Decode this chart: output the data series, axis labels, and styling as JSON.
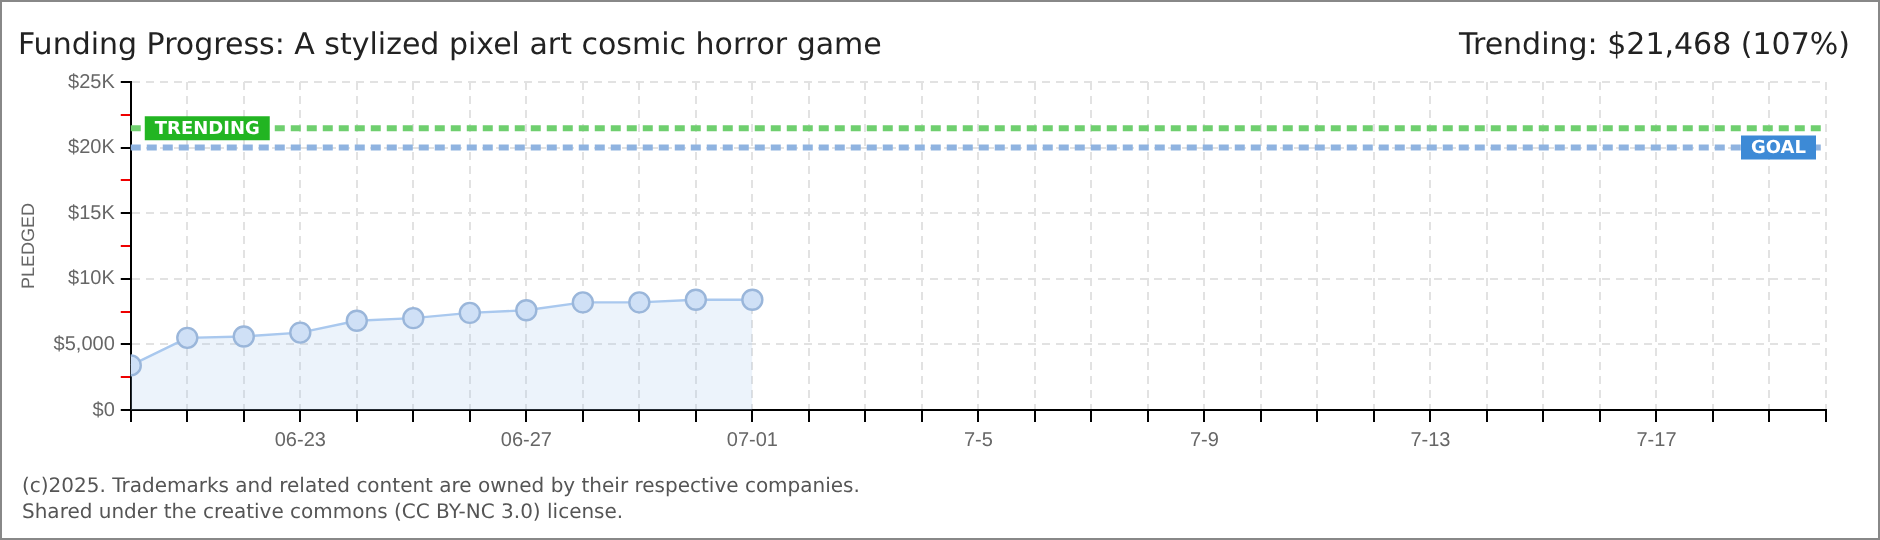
{
  "chart_data": {
    "type": "area",
    "title": "Funding Progress: A stylized pixel art cosmic horror game",
    "subtitle": "Trending: $21,468 (107%)",
    "ylabel": "PLEDGED",
    "x": [
      "--06-20",
      "--06-21",
      "--06-22",
      "--06-23",
      "--06-24",
      "--06-25",
      "--06-26",
      "--06-27",
      "--06-28",
      "--06-29",
      "--06-30",
      "--07-01"
    ],
    "series": [
      {
        "color": "#a9c8ee",
        "values": [
          3400,
          5500,
          5600,
          5900,
          6800,
          7000,
          7400,
          7600,
          8200,
          8200,
          8400,
          8400
        ]
      }
    ],
    "xlim": [
      "--06-20",
      "--07-20"
    ],
    "xticks": [
      {
        "value": "--06-20",
        "label": null
      },
      {
        "value": "--06-21",
        "label": null
      },
      {
        "value": "--06-22",
        "label": null
      },
      {
        "value": "--06-23",
        "label": "06-23"
      },
      {
        "value": "--06-24",
        "label": null
      },
      {
        "value": "--06-25",
        "label": null
      },
      {
        "value": "--06-26",
        "label": null
      },
      {
        "value": "--06-27",
        "label": "06-27"
      },
      {
        "value": "--06-28",
        "label": null
      },
      {
        "value": "--06-29",
        "label": null
      },
      {
        "value": "--06-30",
        "label": null
      },
      {
        "value": "--07-01",
        "label": "07-01"
      },
      {
        "value": "--07-02",
        "label": null
      },
      {
        "value": "--07-03",
        "label": null
      },
      {
        "value": "--07-04",
        "label": null
      },
      {
        "value": "--07-05",
        "label": "7-5"
      },
      {
        "value": "--07-06",
        "label": null
      },
      {
        "value": "--07-07",
        "label": null
      },
      {
        "value": "--07-08",
        "label": null
      },
      {
        "value": "--07-09",
        "label": "7-9"
      },
      {
        "value": "--07-10",
        "label": null
      },
      {
        "value": "--07-11",
        "label": null
      },
      {
        "value": "--07-12",
        "label": null
      },
      {
        "value": "--07-13",
        "label": "7-13"
      },
      {
        "value": "--07-14",
        "label": null
      },
      {
        "value": "--07-15",
        "label": null
      },
      {
        "value": "--07-16",
        "label": null
      },
      {
        "value": "--07-17",
        "label": "7-17"
      },
      {
        "value": "--07-18",
        "label": null
      },
      {
        "value": "--07-19",
        "label": null
      },
      {
        "value": "--07-20",
        "label": null
      }
    ],
    "ylim": [
      0,
      25000
    ],
    "yticks": [
      {
        "value": 0,
        "label": "$0"
      },
      {
        "value": 2500,
        "label": null
      },
      {
        "value": 5000,
        "label": "$5,000"
      },
      {
        "value": 7500,
        "label": null
      },
      {
        "value": 10000,
        "label": "$10K"
      },
      {
        "value": 12500,
        "label": null
      },
      {
        "value": 15000,
        "label": "$15K"
      },
      {
        "value": 17500,
        "label": null
      },
      {
        "value": 20000,
        "label": "$20K"
      },
      {
        "value": 22500,
        "label": null
      },
      {
        "value": 25000,
        "label": "$25K"
      }
    ],
    "ref_lines": [
      {
        "axis": "y",
        "value": 21468,
        "label": "TRENDING",
        "color": "#6fcf6f",
        "line_style": "dashed"
      },
      {
        "axis": "y",
        "value": 20000,
        "label": "GOAL",
        "color": "#8fb3e0",
        "line_style": "dashed"
      }
    ],
    "grid": true,
    "legend": false,
    "marker": "circle",
    "line_style": "solid",
    "annotations": [
      "(c)2025. Trademarks and related content are owned by their respective companies.",
      "Shared under the creative commons (CC BY-NC 3.0) license."
    ]
  }
}
